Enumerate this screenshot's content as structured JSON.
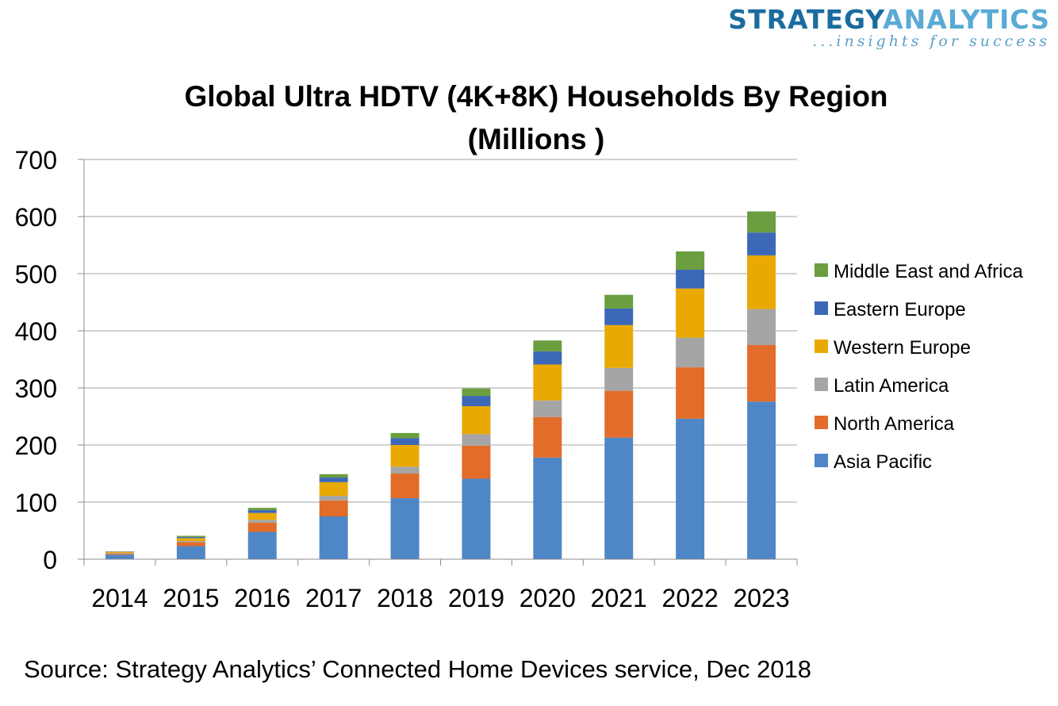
{
  "logo": {
    "text_part1": "STRATEGY",
    "text_part2": "ANALYTICS",
    "tagline": "...insights for success",
    "color_part1": "#1a6c9e",
    "color_part2": "#5aaad6"
  },
  "source": "Source: Strategy Analytics’ Connected Home Devices service, Dec 2018",
  "chart_data": {
    "type": "bar",
    "stacked": true,
    "title": "Global Ultra HDTV (4K+8K) Households By Region",
    "subtitle": "(Millions )",
    "xlabel": "",
    "ylabel": "",
    "ylim": [
      0,
      700
    ],
    "yticks": [
      "0",
      "100",
      "200",
      "300",
      "400",
      "500",
      "600",
      "700"
    ],
    "grid": true,
    "legend_position": "right",
    "categories": [
      "2014",
      "2015",
      "2016",
      "2017",
      "2018",
      "2019",
      "2020",
      "2021",
      "2022",
      "2023"
    ],
    "series": [
      {
        "name": "Asia Pacific",
        "color": "#4f86c6",
        "values": [
          8,
          23,
          48,
          75,
          107,
          141,
          178,
          213,
          246,
          276
        ]
      },
      {
        "name": "North America",
        "color": "#e26c2a",
        "values": [
          2,
          7,
          16,
          28,
          43,
          58,
          71,
          82,
          90,
          99
        ]
      },
      {
        "name": "Latin America",
        "color": "#a5a5a5",
        "values": [
          1,
          2,
          5,
          8,
          12,
          20,
          29,
          40,
          52,
          63
        ]
      },
      {
        "name": "Western Europe",
        "color": "#e9a902",
        "values": [
          2,
          5,
          12,
          24,
          38,
          49,
          63,
          75,
          86,
          94
        ]
      },
      {
        "name": "Eastern Europe",
        "color": "#3c68b8",
        "values": [
          0.5,
          2,
          5,
          8,
          12,
          18,
          23,
          29,
          33,
          40
        ]
      },
      {
        "name": "Middle East and Africa",
        "color": "#6a9e3f",
        "values": [
          0.5,
          2,
          4,
          6,
          9,
          13,
          19,
          24,
          32,
          37
        ]
      }
    ]
  }
}
